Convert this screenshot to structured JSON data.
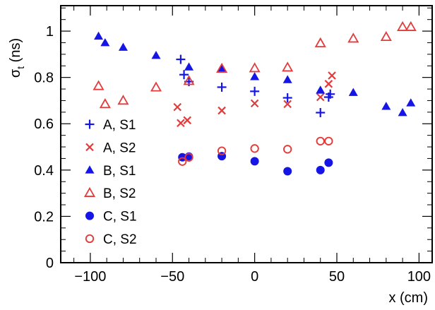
{
  "chart_data": {
    "type": "scatter",
    "xlabel": "x (cm)",
    "ylabel": {
      "main": "σ",
      "sub": "t",
      "unit": " (ns)"
    },
    "xlim": [
      -118,
      108
    ],
    "ylim": [
      0,
      1.11
    ],
    "xticks": [
      -100,
      -50,
      0,
      50,
      100
    ],
    "xtick_labels": [
      "−100",
      "−50",
      "0",
      "50",
      "100"
    ],
    "yticks": [
      0,
      0.2,
      0.4,
      0.6,
      0.8,
      1
    ],
    "ytick_labels": [
      "0",
      "0.2",
      "0.4",
      "0.6",
      "0.8",
      "1"
    ],
    "grid": false,
    "legend_position": "left",
    "series": [
      {
        "name": "A, S1",
        "marker": "plus",
        "color": "#1515e6",
        "x": [
          -45,
          -43,
          -40,
          -20,
          0,
          20,
          40,
          45,
          46
        ],
        "y": [
          0.878,
          0.812,
          0.782,
          0.758,
          0.74,
          0.712,
          0.648,
          0.715,
          0.728
        ]
      },
      {
        "name": "A, S2",
        "marker": "cross",
        "color": "#e33b3b",
        "x": [
          -47,
          -45,
          -41,
          -20,
          0,
          20,
          40,
          45,
          47
        ],
        "y": [
          0.672,
          0.603,
          0.615,
          0.657,
          0.688,
          0.685,
          0.715,
          0.772,
          0.808
        ]
      },
      {
        "name": "B, S1",
        "marker": "triangle",
        "color": "#1515e6",
        "x": [
          -95,
          -91,
          -80,
          -60,
          -40,
          -20,
          0,
          20,
          40,
          60,
          80,
          90,
          95
        ],
        "y": [
          0.978,
          0.95,
          0.93,
          0.895,
          0.845,
          0.835,
          0.803,
          0.79,
          0.745,
          0.735,
          0.675,
          0.648,
          0.69
        ]
      },
      {
        "name": "B, S2",
        "marker": "triangle-open",
        "color": "#e33b3b",
        "x": [
          -95,
          -91,
          -80,
          -60,
          -40,
          -20,
          0,
          20,
          40,
          60,
          80,
          90,
          95
        ],
        "y": [
          0.763,
          0.685,
          0.7,
          0.757,
          0.785,
          0.838,
          0.84,
          0.843,
          0.948,
          0.968,
          0.975,
          1.018,
          1.018
        ]
      },
      {
        "name": "C, S1",
        "marker": "circle",
        "color": "#1515e6",
        "x": [
          -44,
          -40,
          -20,
          0,
          20,
          40,
          45
        ],
        "y": [
          0.455,
          0.458,
          0.46,
          0.438,
          0.395,
          0.4,
          0.432
        ]
      },
      {
        "name": "C, S2",
        "marker": "circle-open",
        "color": "#e33b3b",
        "x": [
          -44,
          -40,
          -20,
          0,
          20,
          40,
          45
        ],
        "y": [
          0.437,
          0.455,
          0.483,
          0.493,
          0.49,
          0.525,
          0.525
        ]
      }
    ]
  }
}
